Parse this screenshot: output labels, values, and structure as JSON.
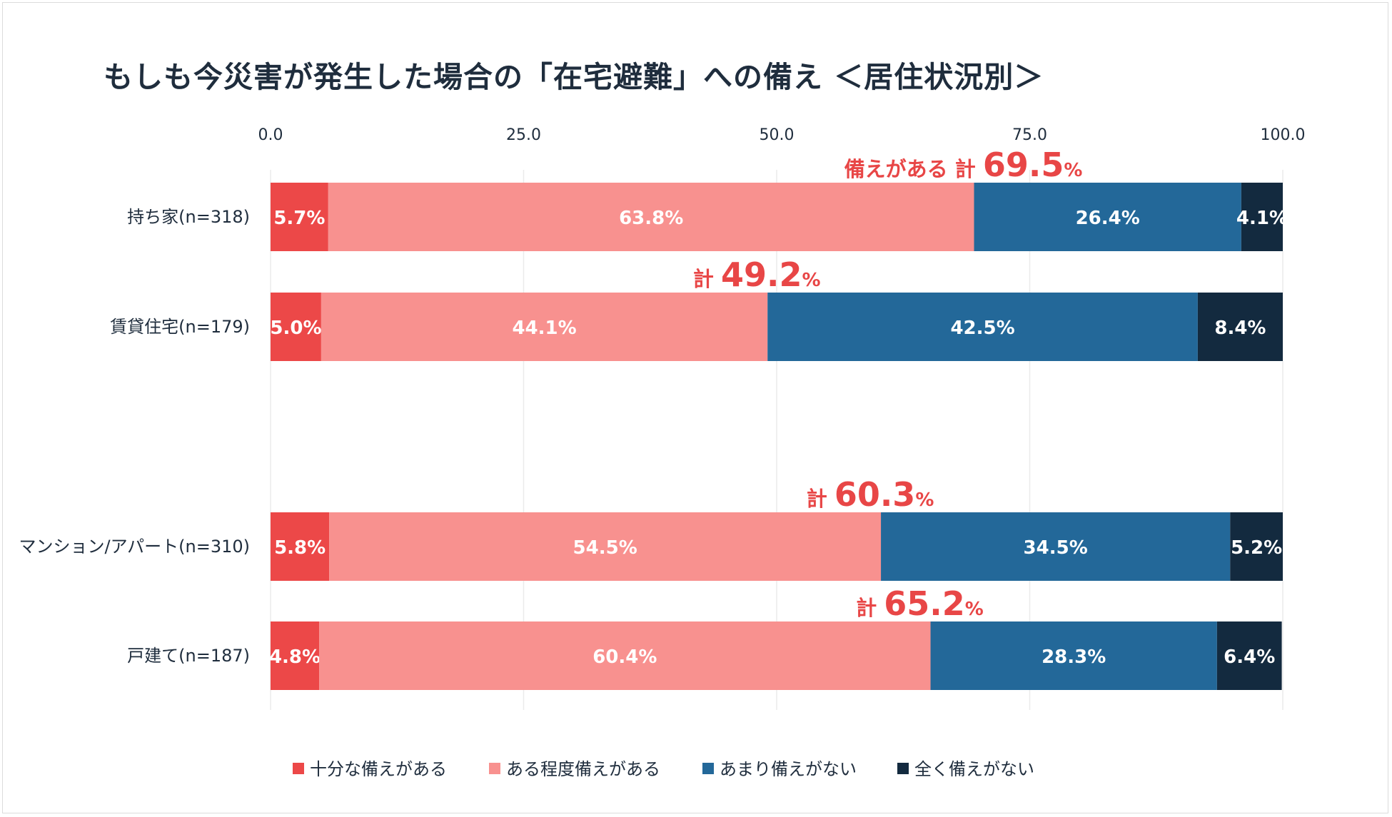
{
  "chart_data": {
    "type": "bar",
    "orientation": "horizontal",
    "stacked": true,
    "title": "もしも今災害が発生した場合の「在宅避難」への備え ＜居住状況別＞",
    "xlim": [
      0,
      100
    ],
    "x_ticks": [
      "0.0",
      "25.0",
      "50.0",
      "75.0",
      "100.0"
    ],
    "grid": true,
    "legend_position": "bottom",
    "categories": [
      "持ち家(n=318)",
      "賃貸住宅(n=179)",
      "マンション/アパート(n=310)",
      "戸建て(n=187)"
    ],
    "series": [
      {
        "name": "十分な備えがある",
        "color": "#ec4848",
        "values": [
          5.7,
          5.0,
          5.8,
          4.8
        ],
        "labels": [
          "5.7%",
          "5.0%",
          "5.8%",
          "4.8%"
        ]
      },
      {
        "name": "ある程度備えがある",
        "color": "#f8918f",
        "values": [
          63.8,
          44.1,
          54.5,
          60.4
        ],
        "labels": [
          "63.8%",
          "44.1%",
          "54.5%",
          "60.4%"
        ]
      },
      {
        "name": "あまり備えがない",
        "color": "#236899",
        "values": [
          26.4,
          42.5,
          34.5,
          28.3
        ],
        "labels": [
          "26.4%",
          "42.5%",
          "34.5%",
          "28.3%"
        ]
      },
      {
        "name": "全く備えがない",
        "color": "#132a3f",
        "values": [
          4.1,
          8.4,
          5.2,
          6.4
        ],
        "labels": [
          "4.1%",
          "8.4%",
          "5.2%",
          "6.4%"
        ]
      }
    ],
    "annotations": [
      {
        "prefix": "備えがある 計",
        "value": "69.5",
        "unit": "%"
      },
      {
        "prefix": "計",
        "value": "49.2",
        "unit": "%"
      },
      {
        "prefix": "計",
        "value": "60.3",
        "unit": "%"
      },
      {
        "prefix": "計",
        "value": "65.2",
        "unit": "%"
      }
    ]
  }
}
